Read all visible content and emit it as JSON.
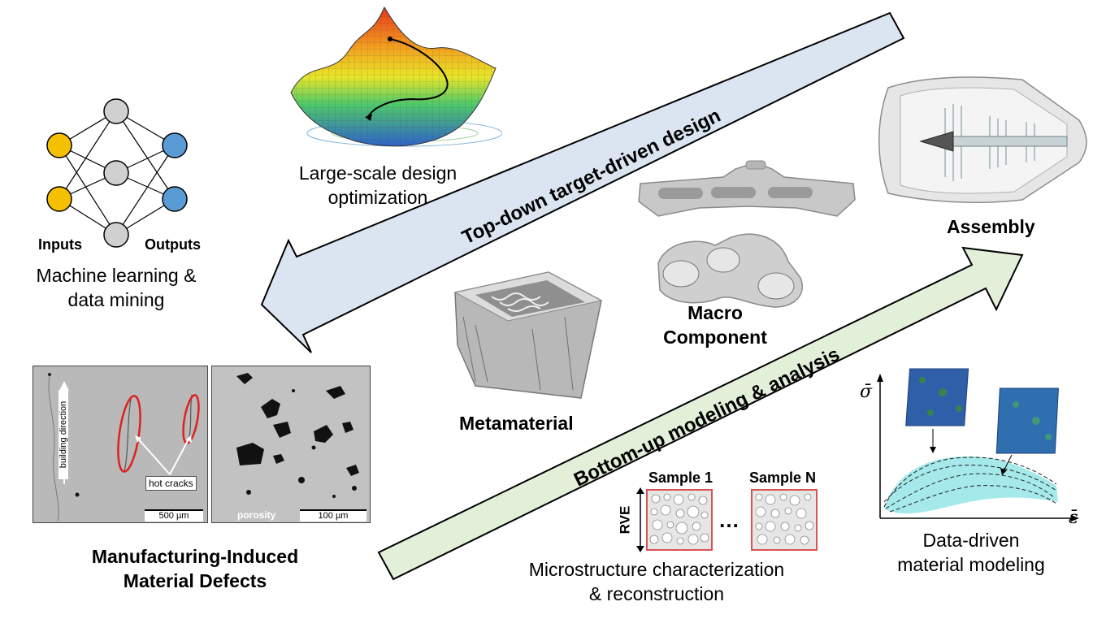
{
  "arrows": {
    "top_down": "Top-down target-driven design",
    "bottom_up": "Bottom-up modeling & analysis"
  },
  "neural_net": {
    "inputs_label": "Inputs",
    "outputs_label": "Outputs",
    "caption_line1": "Machine learning &",
    "caption_line2": "data mining"
  },
  "optimization": {
    "caption_line1": "Large-scale design",
    "caption_line2": "optimization"
  },
  "assembly": {
    "label": "Assembly"
  },
  "macro": {
    "label_line1": "Macro",
    "label_line2": "Component"
  },
  "metamaterial": {
    "label": "Metamaterial"
  },
  "defects": {
    "building_direction": "building direction",
    "hot_cracks": "hot cracks",
    "scale1": "500 µm",
    "porosity": "porosity",
    "scale2": "100 µm",
    "caption_line1": "Manufacturing-Induced",
    "caption_line2": "Material Defects"
  },
  "microstructure": {
    "sample1": "Sample 1",
    "sampleN": "Sample N",
    "rve": "RVE",
    "dots": "…",
    "caption_line1": "Microstructure characterization",
    "caption_line2": "& reconstruction"
  },
  "data_driven": {
    "y_axis": "σ̄",
    "x_axis": "ε̄",
    "caption_line1": "Data-driven",
    "caption_line2": "material modeling"
  },
  "colors": {
    "top_arrow_fill": "#dbe5f1",
    "bottom_arrow_fill": "#e2efd9",
    "input_node": "#f5c000",
    "hidden_node": "#d0d0d0",
    "output_node": "#5b9bd5",
    "defect_ring": "#e02020",
    "rve_border": "#d9534f"
  }
}
